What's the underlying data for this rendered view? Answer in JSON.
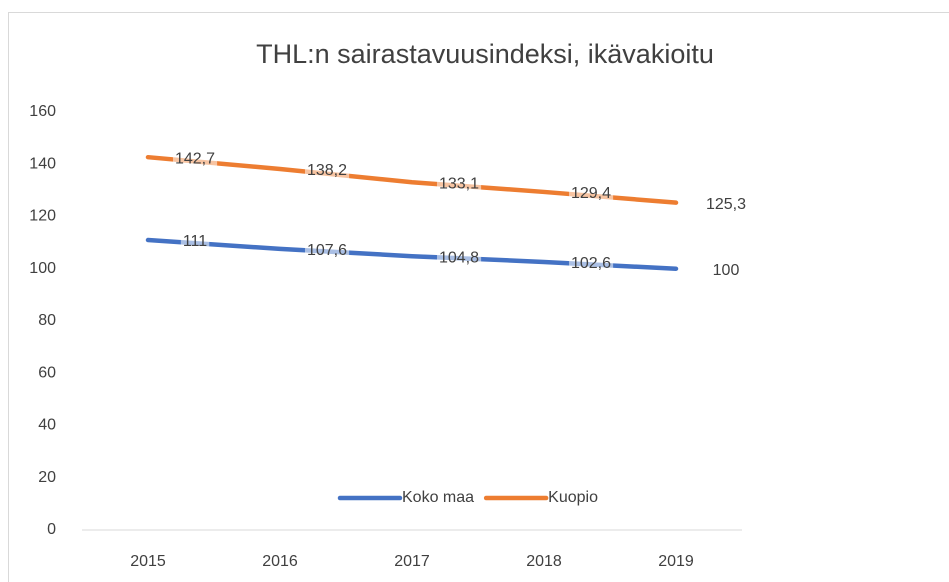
{
  "chart_data": {
    "type": "line",
    "title": "THL:n sairastavuusindeksi, ikävakioitu",
    "categories": [
      "2015",
      "2016",
      "2017",
      "2018",
      "2019"
    ],
    "series": [
      {
        "name": "Koko maa",
        "color": "#4472c4",
        "values": [
          111,
          107.6,
          104.8,
          102.6,
          100
        ],
        "value_labels": [
          "111",
          "107,6",
          "104,8",
          "102,6",
          "100"
        ]
      },
      {
        "name": "Kuopio",
        "color": "#ed7d31",
        "values": [
          142.7,
          138.2,
          133.1,
          129.4,
          125.3
        ],
        "value_labels": [
          "142,7",
          "138,2",
          "133,1",
          "129,4",
          "125,3"
        ]
      }
    ],
    "ylim": [
      0,
      160
    ],
    "yticks": [
      0,
      20,
      40,
      60,
      80,
      100,
      120,
      140,
      160
    ],
    "grid": false,
    "legend": "bottom"
  }
}
